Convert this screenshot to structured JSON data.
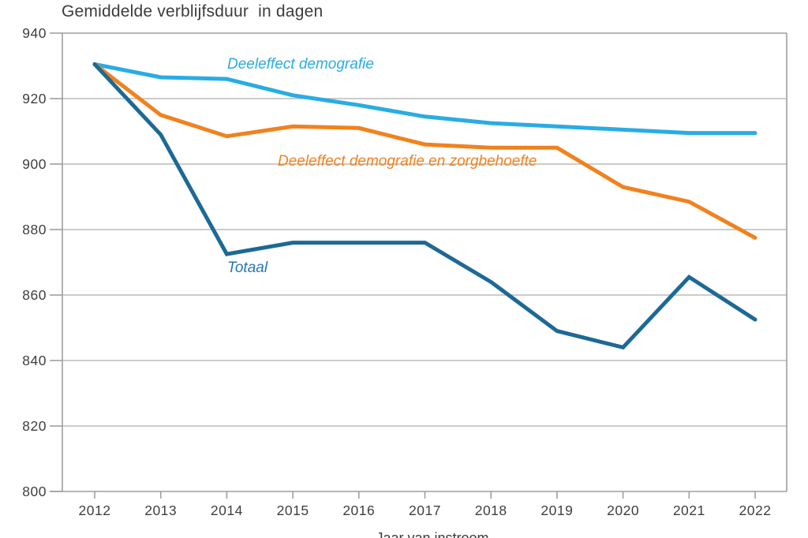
{
  "chart_data": {
    "type": "line",
    "title": "Gemiddelde verblijfsduur  in dagen",
    "xlabel": "Jaar van instroom",
    "ylabel": "",
    "x": [
      2012,
      2013,
      2014,
      2015,
      2016,
      2017,
      2018,
      2019,
      2020,
      2021,
      2022
    ],
    "ylim": [
      800,
      940
    ],
    "yticks": [
      800,
      820,
      840,
      860,
      880,
      900,
      920,
      940
    ],
    "grid": "horizontal",
    "legend": "inline-labels",
    "colors": {
      "grid": "#bcbcbc",
      "axis": "#9f9f9f",
      "text": "#3f3f3e"
    },
    "series": [
      {
        "name": "Deeleffect demografie",
        "color": "#29ace3",
        "values": [
          930.5,
          926.5,
          926,
          921,
          918,
          914.5,
          912.5,
          911.5,
          910.5,
          909.5,
          909.5
        ]
      },
      {
        "name": "Deeleffect demografie en zorgbehoefte",
        "color": "#f0821e",
        "values": [
          930.5,
          915,
          908.5,
          911.5,
          911,
          906,
          905,
          905,
          893,
          888.5,
          877.5
        ]
      },
      {
        "name": "Totaal",
        "color": "#1d6996",
        "values": [
          930.5,
          909,
          872.5,
          876,
          876,
          876,
          864,
          849,
          844,
          865.5,
          852.5
        ]
      }
    ]
  }
}
